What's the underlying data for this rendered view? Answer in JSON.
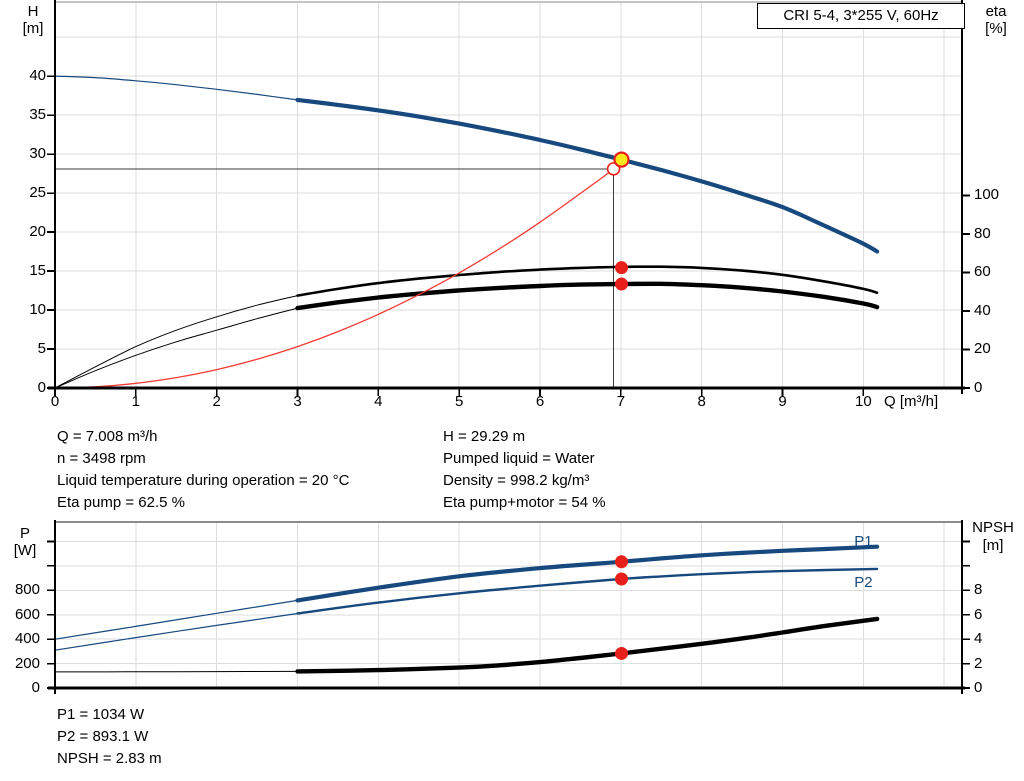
{
  "header": {
    "pump_label": "CRI 5-4, 3*255 V, 60Hz"
  },
  "colors": {
    "blue": "#17497E",
    "black": "#000000",
    "red_curve": "#F23B34",
    "red_dot": "#E8201C",
    "yellow": "#FFE81A",
    "grid": "#DEDEDE",
    "border_gray": "#8A8A8A",
    "crosshair": "#3A3A3A"
  },
  "info_blocks": {
    "top_left": [
      "Q = 7.008 m³/h",
      "n = 3498 rpm",
      "Liquid temperature during operation = 20 °C",
      "Eta pump = 62.5 %"
    ],
    "top_right": [
      "H = 29.29 m",
      "Pumped liquid = Water",
      "Density = 998.2 kg/m³",
      "Eta pump+motor = 54 %"
    ],
    "bottom": [
      "P1 = 1034 W",
      "P2 = 893.1 W",
      "NPSH = 2.83 m"
    ]
  },
  "chart_data": [
    {
      "id": "qh",
      "type": "line",
      "title": "QH and efficiency curves",
      "x_axis": {
        "label": "Q [m³/h]",
        "range": [
          0,
          11.22
        ],
        "tick_labels": [
          {
            "q": 0,
            "t": "0"
          },
          {
            "q": 1,
            "t": "1"
          },
          {
            "q": 2,
            "t": "2"
          },
          {
            "q": 3,
            "t": "3"
          },
          {
            "q": 4,
            "t": "4"
          },
          {
            "q": 5,
            "t": "5"
          },
          {
            "q": 6,
            "t": "6"
          },
          {
            "q": 7,
            "t": "7"
          },
          {
            "q": 8,
            "t": "8"
          },
          {
            "q": 9,
            "t": "9"
          },
          {
            "q": 10,
            "t": "10"
          }
        ],
        "grid_lines": [
          1,
          2,
          3,
          4,
          5,
          6,
          7,
          8,
          9,
          10,
          11
        ]
      },
      "y_left": {
        "label": "H [m]",
        "title_lines": [
          "H",
          "[m]"
        ],
        "range": [
          0,
          49.5
        ],
        "ticks": [
          {
            "v": 0,
            "t": "0"
          },
          {
            "v": 5,
            "t": "5"
          },
          {
            "v": 10,
            "t": "10"
          },
          {
            "v": 15,
            "t": "15"
          },
          {
            "v": 20,
            "t": "20"
          },
          {
            "v": 25,
            "t": "25"
          },
          {
            "v": 30,
            "t": "30"
          },
          {
            "v": 35,
            "t": "35"
          },
          {
            "v": 40,
            "t": "40"
          }
        ],
        "grid_lines": [
          5,
          10,
          15,
          20,
          25,
          30,
          35,
          40,
          45
        ]
      },
      "y_right": {
        "label": "eta [%]",
        "title_lines": [
          "eta",
          "[%]"
        ],
        "range": [
          0,
          200.5
        ],
        "ticks": [
          {
            "v": 0,
            "t": "0"
          },
          {
            "v": 20,
            "t": "20"
          },
          {
            "v": 40,
            "t": "40"
          },
          {
            "v": 60,
            "t": "60"
          },
          {
            "v": 80,
            "t": "80"
          },
          {
            "v": 100,
            "t": "100"
          }
        ]
      },
      "series": [
        {
          "name": "head-curve-extended",
          "axis": "left",
          "color": "blue",
          "width": 1.2,
          "points": [
            [
              0,
              40
            ],
            [
              0.5,
              39.8
            ],
            [
              1,
              39.4
            ],
            [
              1.5,
              38.9
            ],
            [
              2,
              38.3
            ],
            [
              2.5,
              37.65
            ],
            [
              3,
              36.95
            ]
          ]
        },
        {
          "name": "head-curve",
          "axis": "left",
          "color": "blue",
          "width": 4.2,
          "points": [
            [
              3,
              36.95
            ],
            [
              3.5,
              36.3
            ],
            [
              4,
              35.6
            ],
            [
              4.5,
              34.8
            ],
            [
              5,
              33.9
            ],
            [
              5.5,
              32.9
            ],
            [
              6,
              31.8
            ],
            [
              6.5,
              30.6
            ],
            [
              7,
              29.3
            ],
            [
              7.5,
              27.95
            ],
            [
              8,
              26.5
            ],
            [
              8.5,
              24.9
            ],
            [
              9,
              23.2
            ],
            [
              9.5,
              20.9
            ],
            [
              10,
              18.5
            ],
            [
              10.17,
              17.5
            ]
          ]
        },
        {
          "name": "eta-pump-extended",
          "axis": "right",
          "color": "black",
          "width": 1,
          "points": [
            [
              0,
              0
            ],
            [
              0.5,
              11
            ],
            [
              1,
              21.5
            ],
            [
              1.5,
              30
            ],
            [
              2,
              37
            ],
            [
              2.5,
              43
            ],
            [
              3,
              48
            ]
          ]
        },
        {
          "name": "eta-pump",
          "axis": "right",
          "color": "black",
          "width": 2.6,
          "points": [
            [
              3,
              48
            ],
            [
              3.5,
              51.5
            ],
            [
              4,
              54.5
            ],
            [
              4.5,
              56.8
            ],
            [
              5,
              58.7
            ],
            [
              5.5,
              60.3
            ],
            [
              6,
              61.5
            ],
            [
              6.5,
              62.4
            ],
            [
              7,
              62.9
            ],
            [
              7.5,
              63
            ],
            [
              8,
              62.4
            ],
            [
              8.5,
              61
            ],
            [
              9,
              58.8
            ],
            [
              9.5,
              55.5
            ],
            [
              10,
              51.5
            ],
            [
              10.17,
              49.5
            ]
          ]
        },
        {
          "name": "eta-pump-motor-extended",
          "axis": "right",
          "color": "black",
          "width": 1,
          "points": [
            [
              0,
              0
            ],
            [
              0.5,
              9
            ],
            [
              1,
              17
            ],
            [
              1.5,
              24
            ],
            [
              2,
              30
            ],
            [
              2.5,
              36
            ],
            [
              3,
              41.5
            ]
          ]
        },
        {
          "name": "eta-pump-motor",
          "axis": "right",
          "color": "black",
          "width": 4.4,
          "points": [
            [
              3,
              41.5
            ],
            [
              3.5,
              44.5
            ],
            [
              4,
              47
            ],
            [
              4.5,
              49
            ],
            [
              5,
              50.7
            ],
            [
              5.5,
              52
            ],
            [
              6,
              53
            ],
            [
              6.5,
              53.7
            ],
            [
              7,
              54
            ],
            [
              7.5,
              54.1
            ],
            [
              8,
              53.4
            ],
            [
              8.5,
              52.1
            ],
            [
              9,
              50.1
            ],
            [
              9.5,
              47.4
            ],
            [
              10,
              43.9
            ],
            [
              10.17,
              42
            ]
          ]
        },
        {
          "name": "system-curve",
          "axis": "left",
          "color": "red_curve",
          "width": 1.3,
          "points": [
            [
              0,
              0
            ],
            [
              0.5,
              0.15
            ],
            [
              1,
              0.6
            ],
            [
              1.5,
              1.33
            ],
            [
              2,
              2.36
            ],
            [
              2.5,
              3.69
            ],
            [
              3,
              5.31
            ],
            [
              3.5,
              7.23
            ],
            [
              4,
              9.45
            ],
            [
              4.5,
              11.96
            ],
            [
              5,
              14.76
            ],
            [
              5.5,
              17.86
            ],
            [
              6,
              21.26
            ],
            [
              6.5,
              24.95
            ],
            [
              6.91,
              28.1
            ],
            [
              7.008,
              29.29
            ]
          ]
        }
      ],
      "crosshair": {
        "q": 6.91,
        "v": 28.1,
        "axis": "left"
      },
      "markers": [
        {
          "name": "requested-duty-point",
          "q": 6.91,
          "v": 28.1,
          "axis": "left",
          "r": 6,
          "fill": "#FFFFFF",
          "stroke": "red_dot",
          "sw": 1.6
        },
        {
          "name": "duty-point",
          "q": 7.008,
          "v": 29.29,
          "axis": "left",
          "r": 7,
          "fill": "yellow",
          "stroke": "red_dot",
          "sw": 2.2
        },
        {
          "name": "eta-pump-duty-marker",
          "q": 7.008,
          "v": 62.5,
          "axis": "right",
          "r": 6.5,
          "fill": "red_dot",
          "stroke": "none",
          "sw": 0
        },
        {
          "name": "eta-pump-motor-duty-marker",
          "q": 7.008,
          "v": 54,
          "axis": "right",
          "r": 6.5,
          "fill": "red_dot",
          "stroke": "none",
          "sw": 0
        }
      ],
      "curve_labels": []
    },
    {
      "id": "power",
      "type": "line",
      "title": "Power and NPSH curves",
      "x_axis": {
        "label": "",
        "range": [
          0,
          11.22
        ],
        "tick_labels": [],
        "grid_lines": [
          1,
          2,
          3,
          4,
          5,
          6,
          7,
          8,
          9,
          10,
          11
        ]
      },
      "y_left": {
        "label": "P [W]",
        "title_lines": [
          "P",
          "[W]"
        ],
        "range": [
          0,
          1360
        ],
        "ticks": [
          {
            "v": 0,
            "t": "0"
          },
          {
            "v": 200,
            "t": "200"
          },
          {
            "v": 400,
            "t": "400"
          },
          {
            "v": 600,
            "t": "600"
          },
          {
            "v": 800,
            "t": "800"
          },
          {
            "v": 1000,
            "t": ""
          },
          {
            "v": 1200,
            "t": ""
          }
        ],
        "grid_lines": [
          200,
          400,
          600,
          800,
          1000,
          1200
        ]
      },
      "y_right": {
        "label": "NPSH [m]",
        "title_lines": [
          "NPSH",
          "[m]"
        ],
        "range": [
          0,
          13.6
        ],
        "ticks": [
          {
            "v": 0,
            "t": "0"
          },
          {
            "v": 2,
            "t": "2"
          },
          {
            "v": 4,
            "t": "4"
          },
          {
            "v": 6,
            "t": "6"
          },
          {
            "v": 8,
            "t": "8"
          },
          {
            "v": 10,
            "t": ""
          },
          {
            "v": 12,
            "t": ""
          }
        ]
      },
      "series": [
        {
          "name": "p1-curve-extended",
          "axis": "left",
          "color": "blue",
          "width": 1.2,
          "points": [
            [
              0,
              400
            ],
            [
              1,
              505
            ],
            [
              2,
              612
            ],
            [
              3,
              718
            ]
          ]
        },
        {
          "name": "p1-curve",
          "axis": "left",
          "color": "blue",
          "width": 4.2,
          "points": [
            [
              3,
              718
            ],
            [
              4,
              822
            ],
            [
              5,
              915
            ],
            [
              6,
              982
            ],
            [
              7,
              1034
            ],
            [
              7.5,
              1062
            ],
            [
              8,
              1087
            ],
            [
              8.5,
              1107
            ],
            [
              9,
              1124
            ],
            [
              9.5,
              1138
            ],
            [
              10.17,
              1158
            ]
          ]
        },
        {
          "name": "p2-curve-extended",
          "axis": "left",
          "color": "blue",
          "width": 1.2,
          "points": [
            [
              0,
              310
            ],
            [
              1,
              413
            ],
            [
              2,
              513
            ],
            [
              3,
              610
            ]
          ]
        },
        {
          "name": "p2-curve",
          "axis": "left",
          "color": "blue",
          "width": 2.4,
          "points": [
            [
              3,
              610
            ],
            [
              4,
              700
            ],
            [
              5,
              776
            ],
            [
              6,
              838
            ],
            [
              7,
              893
            ],
            [
              7.5,
              914
            ],
            [
              8,
              932
            ],
            [
              8.5,
              947
            ],
            [
              9,
              958
            ],
            [
              10.17,
              976
            ]
          ]
        },
        {
          "name": "npsh-curve-extended",
          "axis": "right",
          "color": "black",
          "width": 1,
          "points": [
            [
              0,
              1.32
            ],
            [
              1,
              1.33
            ],
            [
              2,
              1.34
            ],
            [
              3,
              1.36
            ]
          ]
        },
        {
          "name": "npsh-curve",
          "axis": "right",
          "color": "black",
          "width": 4.4,
          "points": [
            [
              3,
              1.36
            ],
            [
              4,
              1.47
            ],
            [
              5,
              1.67
            ],
            [
              5.5,
              1.86
            ],
            [
              6,
              2.12
            ],
            [
              6.5,
              2.46
            ],
            [
              7,
              2.83
            ],
            [
              7.5,
              3.22
            ],
            [
              8,
              3.62
            ],
            [
              8.5,
              4.06
            ],
            [
              9,
              4.55
            ],
            [
              9.5,
              5.06
            ],
            [
              10.17,
              5.66
            ]
          ]
        }
      ],
      "crosshair": null,
      "markers": [
        {
          "name": "p1-duty-marker",
          "q": 7.008,
          "v": 1034,
          "axis": "left",
          "r": 6.5,
          "fill": "red_dot",
          "stroke": "none",
          "sw": 0
        },
        {
          "name": "p2-duty-marker",
          "q": 7.008,
          "v": 893.1,
          "axis": "left",
          "r": 6.5,
          "fill": "red_dot",
          "stroke": "none",
          "sw": 0
        },
        {
          "name": "npsh-duty-marker",
          "q": 7.008,
          "v": 2.83,
          "axis": "right",
          "r": 6.5,
          "fill": "red_dot",
          "stroke": "none",
          "sw": 0
        }
      ],
      "curve_labels": [
        {
          "text": "P1",
          "q": 10,
          "v": 1200,
          "axis": "left"
        },
        {
          "text": "P2",
          "q": 10,
          "v": 858,
          "axis": "left"
        }
      ]
    }
  ]
}
